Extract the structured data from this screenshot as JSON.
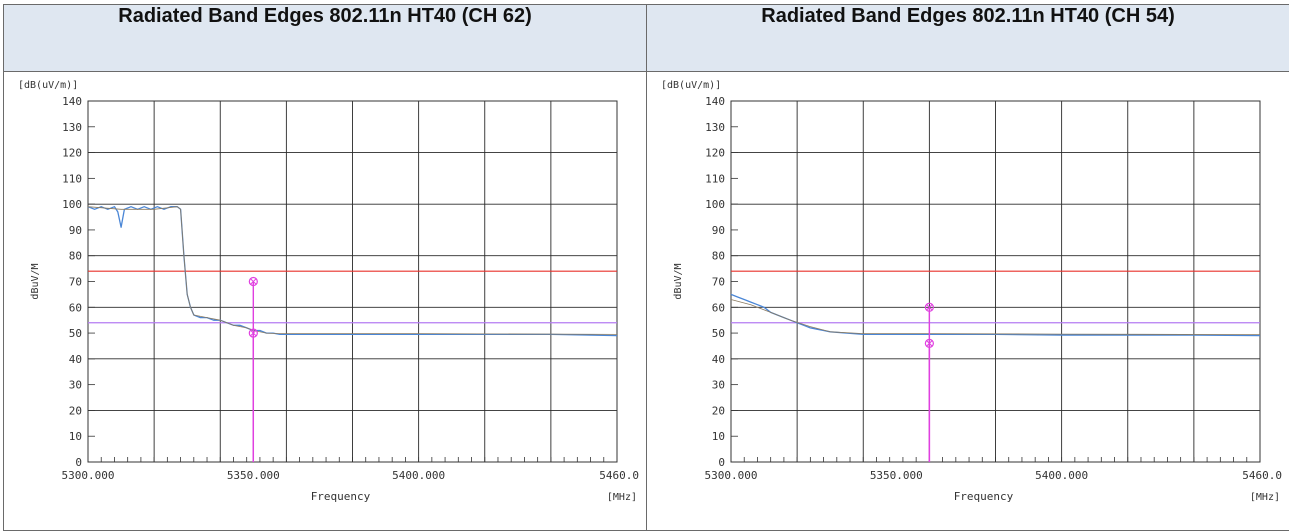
{
  "panels": [
    {
      "title": "Radiated Band Edges 802.11n HT40 (CH 62)",
      "unit_label": "[dB(uV/m)]",
      "ylabel": "dBuV/M",
      "xlabel": "Frequency",
      "x_unit": "[MHz]"
    },
    {
      "title": "Radiated Band Edges 802.11n HT40 (CH 54)",
      "unit_label": "[dB(uV/m)]",
      "ylabel": "dBuV/M",
      "xlabel": "Frequency",
      "x_unit": "[MHz]"
    }
  ],
  "chart_data": [
    {
      "type": "line",
      "title": "Radiated Band Edges 802.11n HT40 (CH 62)",
      "xlabel": "Frequency",
      "ylabel": "dBuV/M",
      "xlim": [
        5300,
        5460
      ],
      "ylim": [
        0,
        140
      ],
      "x_ticks": [
        "5300.000",
        "5350.000",
        "5400.000",
        "5460.0"
      ],
      "y_ticks": [
        "0",
        "10",
        "20",
        "30",
        "40",
        "50",
        "60",
        "70",
        "80",
        "90",
        "100",
        "110",
        "120",
        "130",
        "140"
      ],
      "grid": true,
      "limit_lines": [
        {
          "value": 74,
          "color": "#e8302a"
        },
        {
          "value": 54,
          "color": "#b57cf2"
        }
      ],
      "series": [
        {
          "color": "#4a86d6",
          "x": [
            5300,
            5302,
            5304,
            5306,
            5308,
            5309,
            5310,
            5311,
            5313,
            5315,
            5317,
            5319,
            5321,
            5323,
            5325,
            5327,
            5328,
            5329,
            5330,
            5331,
            5332,
            5334,
            5336,
            5338,
            5340,
            5342,
            5344,
            5346,
            5348,
            5350,
            5352,
            5354,
            5356,
            5358,
            5360,
            5370,
            5380,
            5390,
            5400,
            5420,
            5440,
            5460
          ],
          "y": [
            99,
            98,
            99,
            98,
            99,
            97,
            91,
            98,
            99,
            98,
            99,
            98,
            99,
            98,
            99,
            99,
            98,
            80,
            65,
            60,
            57,
            56,
            56,
            55,
            55,
            54,
            53,
            53,
            52,
            51,
            51,
            50,
            50,
            49.5,
            49.5,
            49.5,
            49.5,
            49.5,
            49.5,
            49.5,
            49.5,
            49
          ]
        },
        {
          "color": "#8a7a60",
          "x": [
            5300,
            5310,
            5320,
            5327,
            5328,
            5329,
            5330,
            5331,
            5332,
            5336,
            5340,
            5344,
            5348,
            5350,
            5354,
            5358,
            5370,
            5400,
            5460
          ],
          "y": [
            99,
            98,
            98,
            99,
            98,
            80,
            65,
            60,
            57,
            56,
            55,
            53,
            52,
            51,
            50,
            49.8,
            49.8,
            49.8,
            49.5
          ]
        }
      ],
      "markers": [
        {
          "x": 5350,
          "y": 70,
          "color": "#e040e0"
        },
        {
          "x": 5350,
          "y": 50,
          "color": "#e040e0"
        }
      ]
    },
    {
      "type": "line",
      "title": "Radiated Band Edges 802.11n HT40 (CH 54)",
      "xlabel": "Frequency",
      "ylabel": "dBuV/M",
      "xlim": [
        5300,
        5460
      ],
      "ylim": [
        0,
        140
      ],
      "x_ticks": [
        "5300.000",
        "5350.000",
        "5400.000",
        "5460.0"
      ],
      "y_ticks": [
        "0",
        "10",
        "20",
        "30",
        "40",
        "50",
        "60",
        "70",
        "80",
        "90",
        "100",
        "110",
        "120",
        "130",
        "140"
      ],
      "grid": true,
      "limit_lines": [
        {
          "value": 74,
          "color": "#e8302a"
        },
        {
          "value": 54,
          "color": "#b57cf2"
        }
      ],
      "series": [
        {
          "color": "#4a86d6",
          "x": [
            5300,
            5302,
            5304,
            5306,
            5308,
            5310,
            5312,
            5314,
            5316,
            5318,
            5320,
            5322,
            5324,
            5326,
            5328,
            5330,
            5335,
            5340,
            5350,
            5360,
            5370,
            5380,
            5400,
            5420,
            5440,
            5460
          ],
          "y": [
            65,
            64,
            63,
            62,
            61,
            60,
            58,
            57,
            56,
            55,
            54,
            53,
            52,
            51.5,
            51,
            50.5,
            50,
            49.5,
            49.5,
            49.5,
            49.5,
            49.5,
            49.2,
            49.2,
            49.2,
            49
          ]
        },
        {
          "color": "#8a7a60",
          "x": [
            5300,
            5306,
            5312,
            5318,
            5324,
            5330,
            5340,
            5360,
            5400,
            5460
          ],
          "y": [
            63,
            61,
            58,
            55,
            52.5,
            50.5,
            49.8,
            49.8,
            49.6,
            49.4
          ]
        }
      ],
      "markers": [
        {
          "x": 5360,
          "y": 60,
          "color": "#e040e0"
        },
        {
          "x": 5360,
          "y": 46,
          "color": "#e040e0"
        }
      ]
    }
  ]
}
